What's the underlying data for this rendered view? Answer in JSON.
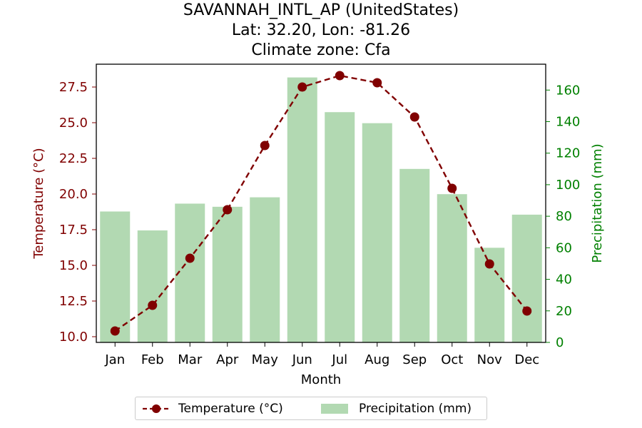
{
  "chart_data": {
    "type": "bar+line",
    "title_lines": [
      "SAVANNAH_INTL_AP (UnitedStates)",
      "Lat: 32.20, Lon: -81.26",
      "Climate zone: Cfa"
    ],
    "xlabel": "Month",
    "categories": [
      "Jan",
      "Feb",
      "Mar",
      "Apr",
      "May",
      "Jun",
      "Jul",
      "Aug",
      "Sep",
      "Oct",
      "Nov",
      "Dec"
    ],
    "series": [
      {
        "name": "Temperature (°C)",
        "type": "line",
        "axis": "left",
        "values": [
          10.4,
          12.2,
          15.5,
          18.9,
          23.4,
          27.5,
          28.3,
          27.8,
          25.4,
          20.4,
          15.1,
          11.8
        ],
        "color": "#800000"
      },
      {
        "name": "Precipitation (mm)",
        "type": "bar",
        "axis": "right",
        "values": [
          83,
          71,
          88,
          86,
          92,
          168,
          146,
          139,
          110,
          94,
          60,
          81
        ],
        "color": "#b2d9b2"
      }
    ],
    "ylabel_left": "Temperature (°C)",
    "ylabel_right": "Precipitation (mm)",
    "ylim_left": [
      9.6,
      29.1
    ],
    "yticks_left": [
      "10.0",
      "12.5",
      "15.0",
      "17.5",
      "20.0",
      "22.5",
      "25.0",
      "27.5"
    ],
    "ylim_right": [
      0,
      176.4
    ],
    "yticks_right": [
      "0",
      "20",
      "40",
      "60",
      "80",
      "100",
      "120",
      "140",
      "160"
    ],
    "left_axis_color": "#800000",
    "right_axis_color": "#008000",
    "legend_position": "bottom-center",
    "grid": false
  }
}
